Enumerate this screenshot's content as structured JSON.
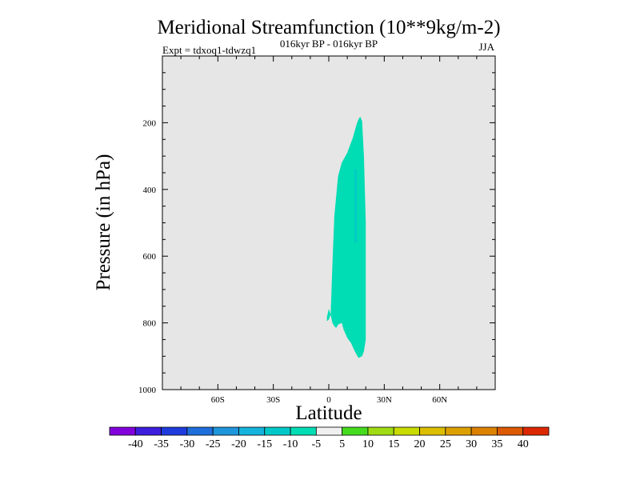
{
  "chart_data": {
    "type": "contour",
    "title": "Meridional Streamfunction (10**9kg/m-2)",
    "subtitle_left": "Expt = tdxoq1-tdwzq1",
    "subtitle_center": "016kyr BP - 016kyr BP",
    "subtitle_right": "JJA",
    "xlabel": "Latitude",
    "ylabel": "Pressure (in hPa)",
    "xlim": [
      -90,
      90
    ],
    "ylim": [
      1000,
      0
    ],
    "x_ticks": [
      {
        "value": -60,
        "label": "60S"
      },
      {
        "value": -30,
        "label": "30S"
      },
      {
        "value": 0,
        "label": "0"
      },
      {
        "value": 30,
        "label": "30N"
      },
      {
        "value": 60,
        "label": "60N"
      }
    ],
    "y_ticks": [
      {
        "value": 200,
        "label": "200"
      },
      {
        "value": 400,
        "label": "400"
      },
      {
        "value": 600,
        "label": "600"
      },
      {
        "value": 800,
        "label": "800"
      },
      {
        "value": 1000,
        "label": "1000"
      }
    ],
    "background_color": "#e6e6e6",
    "regions": [
      {
        "name": "level -10 to -5",
        "color": "#00dcb4",
        "polygon": [
          [
            1,
            776
          ],
          [
            2,
            620
          ],
          [
            3,
            480
          ],
          [
            5,
            360
          ],
          [
            7,
            320
          ],
          [
            10,
            290
          ],
          [
            13,
            245
          ],
          [
            15,
            205
          ],
          [
            16,
            190
          ],
          [
            17,
            182
          ],
          [
            18,
            195
          ],
          [
            19,
            300
          ],
          [
            20,
            500
          ],
          [
            20,
            700
          ],
          [
            20,
            850
          ],
          [
            19,
            885
          ],
          [
            18,
            900
          ],
          [
            16,
            905
          ],
          [
            14,
            885
          ],
          [
            12,
            860
          ],
          [
            10,
            845
          ],
          [
            8,
            820
          ],
          [
            7,
            800
          ],
          [
            5,
            805
          ],
          [
            4,
            815
          ],
          [
            3,
            810
          ],
          [
            2,
            800
          ]
        ]
      },
      {
        "name": "level -10 to -5 (islet)",
        "color": "#00dcb4",
        "polygon": [
          [
            -1,
            782
          ],
          [
            0,
            758
          ],
          [
            1,
            775
          ],
          [
            0,
            790
          ],
          [
            -1,
            795
          ]
        ]
      },
      {
        "name": "level -15 to -10",
        "color": "#00c8c8",
        "polygon": [
          [
            14,
            340
          ],
          [
            15,
            340
          ],
          [
            15,
            560
          ],
          [
            14,
            560
          ]
        ]
      }
    ],
    "colorbar": {
      "labels": [
        "-40",
        "-35",
        "-30",
        "-25",
        "-20",
        "-15",
        "-10",
        "-5",
        "5",
        "10",
        "15",
        "20",
        "25",
        "30",
        "35",
        "40"
      ],
      "colors": [
        "#8200dc",
        "#3c1edc",
        "#1e3cdc",
        "#1e6edc",
        "#1e96dc",
        "#14b4dc",
        "#00c8c8",
        "#00dcb4",
        "#f0f0f0",
        "#46dc1e",
        "#a0dc14",
        "#c8dc00",
        "#dcbe00",
        "#dca000",
        "#dc8200",
        "#dc5a00",
        "#dc2800"
      ]
    }
  }
}
